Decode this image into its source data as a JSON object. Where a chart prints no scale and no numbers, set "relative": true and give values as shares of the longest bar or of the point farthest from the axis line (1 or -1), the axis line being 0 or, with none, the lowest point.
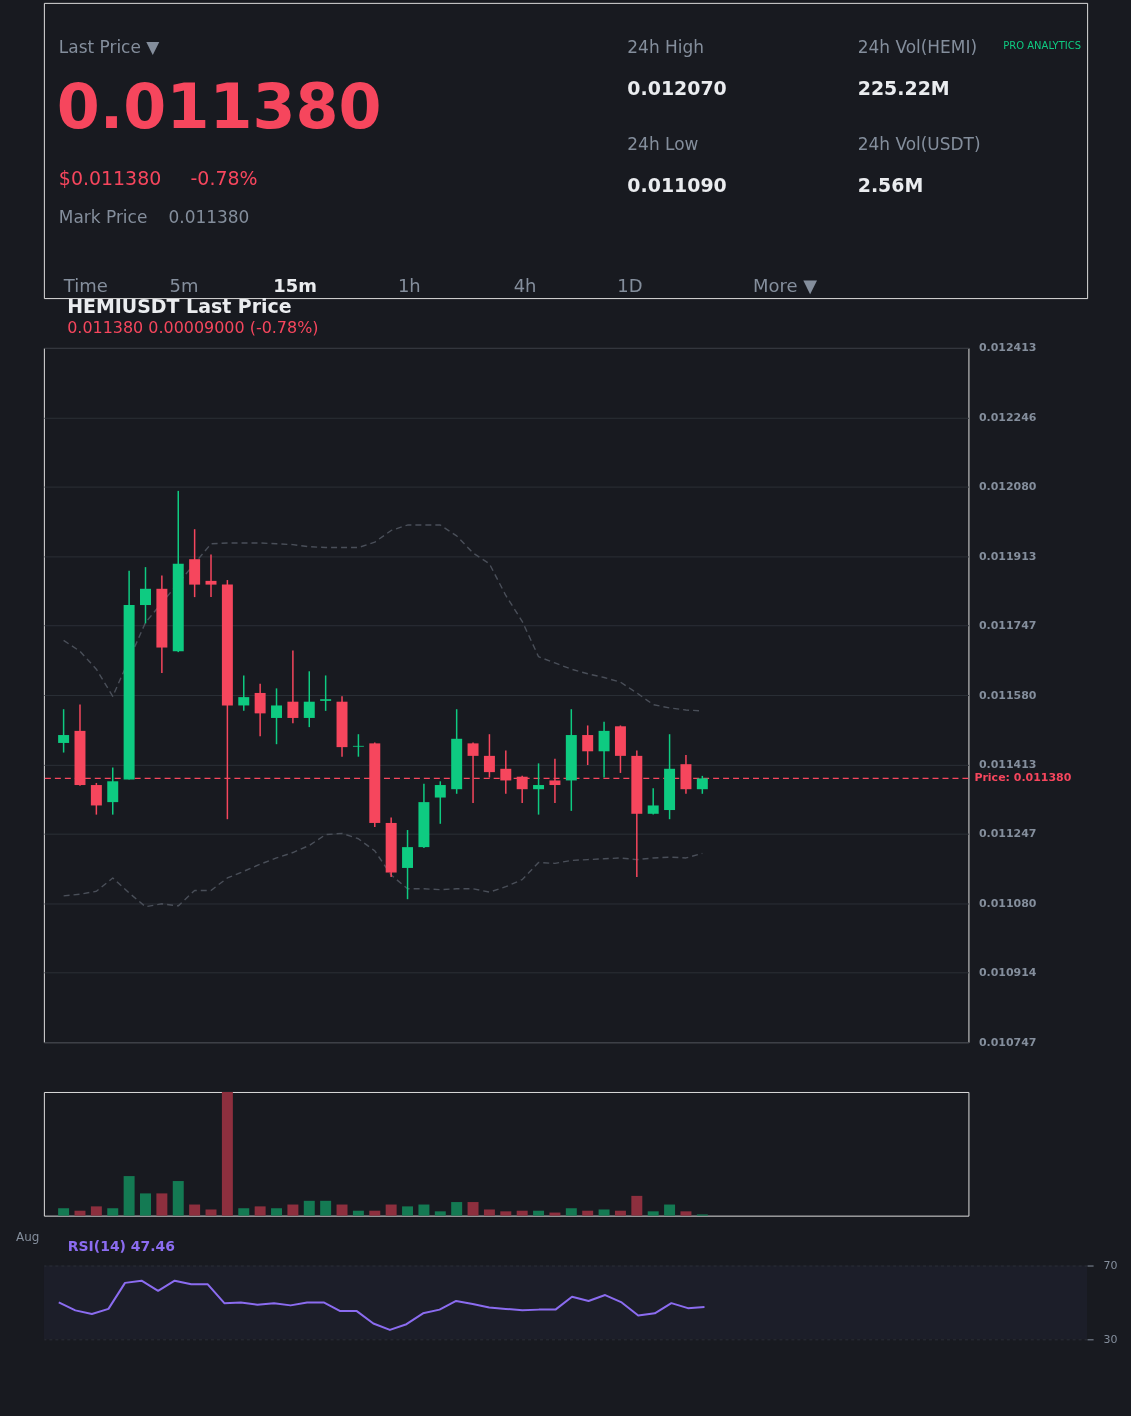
{
  "chart_data": [
    {
      "type": "other",
      "annotations": [
        "Last Price ▼",
        "0.011380",
        "$0.011380",
        "-0.78%",
        "Mark Price",
        "0.011380",
        "24h High",
        "0.012070",
        "24h Vol(HEMI)",
        "225.22M",
        "24h Low",
        "0.011090",
        "24h Vol(USDT)",
        "2.56M",
        "PRO ANALYTICS",
        "Time",
        "5m",
        "15m",
        "1h",
        "4h",
        "1D",
        "More ▼"
      ]
    },
    {
      "type": "candlestick",
      "title": "HEMIUSDT Last Price",
      "subtitle": "0.011380 0.00009000 (-0.78%)",
      "categories": [
        null,
        null,
        null,
        null,
        null,
        null,
        null,
        null,
        null,
        null,
        null,
        null,
        null,
        null,
        null,
        null,
        null,
        null,
        null,
        null,
        null,
        null,
        null,
        null,
        null,
        null,
        null,
        null,
        null,
        null,
        null,
        null,
        null,
        null,
        null,
        null,
        null,
        null,
        null,
        null
      ],
      "ohlc": [
        [
          0.011465,
          0.011546,
          0.011442,
          0.011484
        ],
        [
          0.011494,
          0.011557,
          0.011362,
          0.011364
        ],
        [
          0.011364,
          0.011369,
          0.011293,
          0.011315
        ],
        [
          0.011323,
          0.011406,
          0.011293,
          0.011373
        ],
        [
          0.011377,
          0.011878,
          0.011377,
          0.011796
        ],
        [
          0.011796,
          0.011887,
          0.011752,
          0.011835
        ],
        [
          0.011835,
          0.011867,
          0.011633,
          0.011694
        ],
        [
          0.011685,
          0.01207,
          0.011683,
          0.011895
        ],
        [
          0.011906,
          0.011978,
          0.011815,
          0.011845
        ],
        [
          0.011854,
          0.011917,
          0.011815,
          0.011845
        ],
        [
          0.011845,
          0.011856,
          0.011282,
          0.011555
        ],
        [
          0.011555,
          0.011627,
          0.011542,
          0.011575
        ],
        [
          0.011585,
          0.011607,
          0.011481,
          0.011536
        ],
        [
          0.011525,
          0.011596,
          0.011462,
          0.011555
        ],
        [
          0.011564,
          0.011687,
          0.011512,
          0.011525
        ],
        [
          0.011525,
          0.011637,
          0.011503,
          0.011564
        ],
        [
          0.011566,
          0.011627,
          0.011542,
          0.01157
        ],
        [
          0.011564,
          0.011577,
          0.011432,
          0.011455
        ],
        [
          0.011456,
          0.011486,
          0.011432,
          0.011458
        ],
        [
          0.011464,
          0.011466,
          0.011263,
          0.011273
        ],
        [
          0.011273,
          0.011286,
          0.011143,
          0.011154
        ],
        [
          0.011165,
          0.011256,
          0.01109,
          0.011215
        ],
        [
          0.011215,
          0.011367,
          0.011213,
          0.011323
        ],
        [
          0.011334,
          0.011373,
          0.011271,
          0.011364
        ],
        [
          0.011354,
          0.011546,
          0.011343,
          0.011475
        ],
        [
          0.011464,
          0.011466,
          0.011321,
          0.011434
        ],
        [
          0.011434,
          0.011486,
          0.011382,
          0.011395
        ],
        [
          0.011403,
          0.011447,
          0.011343,
          0.011375
        ],
        [
          0.011384,
          0.011386,
          0.011321,
          0.011354
        ],
        [
          0.011354,
          0.011416,
          0.011293,
          0.011364
        ],
        [
          0.011375,
          0.011427,
          0.011321,
          0.011364
        ],
        [
          0.011375,
          0.011546,
          0.011302,
          0.011484
        ],
        [
          0.011484,
          0.011507,
          0.011412,
          0.011445
        ],
        [
          0.011445,
          0.011516,
          0.011382,
          0.011494
        ],
        [
          0.011505,
          0.011507,
          0.011393,
          0.011434
        ],
        [
          0.011434,
          0.011447,
          0.011143,
          0.011295
        ],
        [
          0.011295,
          0.011356,
          0.011293,
          0.011315
        ],
        [
          0.011304,
          0.011486,
          0.011282,
          0.011403
        ],
        [
          0.011414,
          0.011436,
          0.011343,
          0.011354
        ],
        [
          0.011354,
          0.011386,
          0.011343,
          0.01138
        ]
      ],
      "colors": [
        "#0ecb81",
        "#f6465d",
        "#f6465d",
        "#0ecb81",
        "#0ecb81",
        "#0ecb81",
        "#f6465d",
        "#0ecb81",
        "#f6465d",
        "#f6465d",
        "#f6465d",
        "#0ecb81",
        "#f6465d",
        "#0ecb81",
        "#f6465d",
        "#0ecb81",
        "#0ecb81",
        "#f6465d",
        "#0ecb81",
        "#f6465d",
        "#f6465d",
        "#0ecb81",
        "#0ecb81",
        "#0ecb81",
        "#0ecb81",
        "#f6465d",
        "#f6465d",
        "#f6465d",
        "#f6465d",
        "#0ecb81",
        "#f6465d",
        "#0ecb81",
        "#f6465d",
        "#0ecb81",
        "#f6465d",
        "#f6465d",
        "#0ecb81",
        "#0ecb81",
        "#f6465d",
        "#0ecb81"
      ],
      "series": [
        {
          "type": "line",
          "color": "#4a4f59",
          "line_style": "dashed",
          "values": [
            0.011711,
            0.011685,
            0.011642,
            0.011577,
            null,
            0.011754,
            null,
            null,
            null,
            0.011943,
            0.011945,
            0.011945,
            0.011945,
            0.011943,
            0.011941,
            0.011936,
            0.011934,
            0.011934,
            0.011934,
            0.011947,
            0.011975,
            0.011988,
            0.011988,
            0.011988,
            0.011962,
            0.011921,
            0.011895,
            0.011819,
            0.011757,
            0.011672,
            0.011657,
            0.011642,
            0.011631,
            0.011622,
            0.011611,
            0.011585,
            0.011557,
            0.011549,
            0.011544,
            0.011542
          ]
        },
        {
          "type": "line",
          "color": "#4a4f59",
          "line_style": "dashed",
          "values": [
            0.011098,
            0.011102,
            0.011109,
            0.011141,
            0.011105,
            0.011072,
            0.011079,
            0.011074,
            0.011111,
            0.011111,
            0.011141,
            0.011157,
            0.011174,
            0.011189,
            0.011202,
            0.011219,
            0.011245,
            0.011248,
            0.011235,
            0.011206,
            0.011148,
            0.011115,
            0.011115,
            0.011113,
            0.011115,
            0.011115,
            0.011107,
            0.01112,
            0.011137,
            0.011178,
            0.011176,
            0.011183,
            0.011185,
            0.011187,
            0.011189,
            0.011185,
            0.011189,
            0.011191,
            0.011189,
            0.0112
          ]
        }
      ],
      "ylim": [
        0.010747,
        0.012413
      ],
      "yticks": [
        0.012413,
        0.012246,
        {
          "value": 0.01208,
          "label": "0.012080"
        },
        0.011913,
        0.011747,
        {
          "value": 0.01158,
          "label": "0.011580"
        },
        0.011413,
        0.011247,
        {
          "value": 0.01108,
          "label": "0.011080"
        },
        0.010914,
        0.010747
      ],
      "ref_lines": [
        {
          "axis": "y",
          "value": 0.01138,
          "label": "Price: 0.011380",
          "color": "#f6465d",
          "line_style": "dashed"
        }
      ],
      "grid": "y",
      "tick_labels": "y"
    },
    {
      "type": "bar",
      "relative": true,
      "categories": [
        null,
        null,
        null,
        null,
        null,
        null,
        null,
        null,
        null,
        null,
        null,
        null,
        null,
        null,
        null,
        null,
        null,
        null,
        null,
        null,
        null,
        null,
        null,
        null,
        null,
        null,
        null,
        null,
        null,
        null,
        null,
        null,
        null,
        null,
        null,
        null,
        null,
        null,
        null,
        null
      ],
      "values": [
        0.06,
        0.04,
        0.075,
        0.06,
        0.32,
        0.18,
        0.18,
        0.28,
        0.09,
        0.05,
        1,
        0.06,
        0.075,
        0.06,
        0.09,
        0.12,
        0.12,
        0.09,
        0.04,
        0.04,
        0.09,
        0.075,
        0.09,
        0.035,
        0.11,
        0.11,
        0.05,
        0.035,
        0.04,
        0.04,
        0.025,
        0.06,
        0.04,
        0.05,
        0.04,
        0.16,
        0.035,
        0.09,
        0.035,
        0.01
      ],
      "colors": [
        "#147a53",
        "#8d2f3e",
        "#8d2f3e",
        "#147a53",
        "#147a53",
        "#147a53",
        "#8d2f3e",
        "#147a53",
        "#8d2f3e",
        "#8d2f3e",
        "#8d2f3e",
        "#147a53",
        "#8d2f3e",
        "#147a53",
        "#8d2f3e",
        "#147a53",
        "#147a53",
        "#8d2f3e",
        "#147a53",
        "#8d2f3e",
        "#8d2f3e",
        "#147a53",
        "#147a53",
        "#147a53",
        "#147a53",
        "#8d2f3e",
        "#8d2f3e",
        "#8d2f3e",
        "#8d2f3e",
        "#147a53",
        "#8d2f3e",
        "#147a53",
        "#8d2f3e",
        "#147a53",
        "#8d2f3e",
        "#8d2f3e",
        "#147a53",
        "#147a53",
        "#8d2f3e",
        "#147a53"
      ],
      "annotations": [
        "Aug"
      ],
      "tick_labels": false
    },
    {
      "type": "line",
      "title": "RSI(14) 47.46",
      "color": "#8b6cf0",
      "categories": [
        null,
        null,
        null,
        null,
        null,
        null,
        null,
        null,
        null,
        null,
        null,
        null,
        null,
        null,
        null,
        null,
        null,
        null,
        null,
        null,
        null,
        null,
        null,
        null,
        null,
        null,
        null,
        null,
        null,
        null,
        null,
        null,
        null,
        null,
        null,
        null,
        null,
        null,
        null,
        null
      ],
      "values": [
        50.0,
        45.7,
        43.7,
        46.5,
        60.6,
        61.8,
        56.3,
        61.8,
        59.8,
        59.8,
        49.6,
        50.0,
        48.8,
        49.6,
        48.4,
        50.0,
        50.0,
        45.3,
        45.3,
        38.6,
        35.1,
        38.2,
        44.1,
        46.1,
        50.8,
        49.2,
        47.3,
        46.5,
        45.7,
        46.1,
        46.1,
        53.1,
        50.8,
        54.0,
        50.0,
        42.9,
        44.1,
        49.6,
        46.9,
        47.46
      ],
      "ylim": [
        30,
        70
      ],
      "yticks": [
        30,
        70
      ],
      "grid": "y",
      "tick_labels": "y"
    }
  ]
}
